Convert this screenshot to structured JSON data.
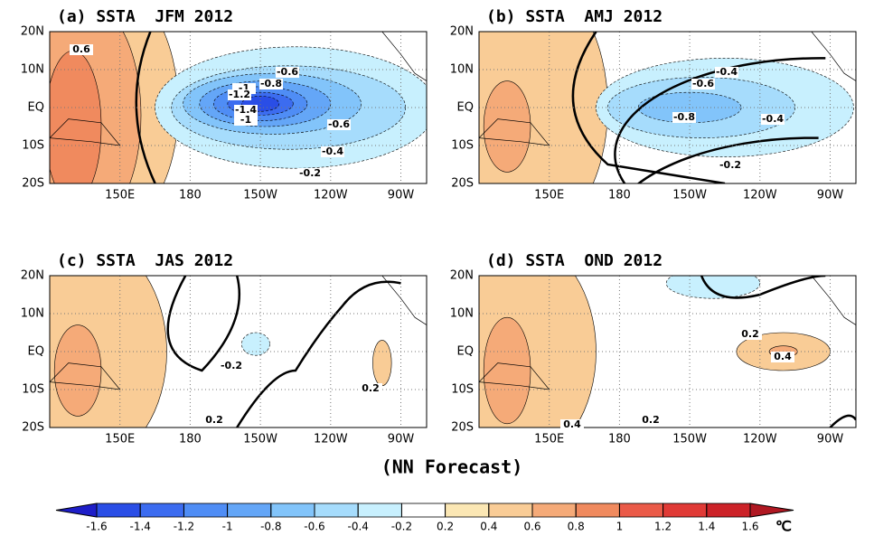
{
  "panels": [
    {
      "title": "(a) SSTA  JFM 2012",
      "contour_labels": [
        "0.6",
        "-0.6",
        "-0.8",
        "-1",
        "-1.2",
        "-1.4",
        "-1",
        "-0.6",
        "-0.4",
        "-0.2"
      ]
    },
    {
      "title": "(b) SSTA  AMJ 2012",
      "contour_labels": [
        "-0.4",
        "-0.6",
        "-0.8",
        "-0.4",
        "-0.2"
      ]
    },
    {
      "title": "(c) SSTA  JAS 2012",
      "contour_labels": [
        "-0.2",
        "0.2",
        "0.2"
      ]
    },
    {
      "title": "(d) SSTA  OND 2012",
      "contour_labels": [
        "0.2",
        "0.4",
        "0.2",
        "0.4"
      ]
    }
  ],
  "lat_labels": [
    "20N",
    "10N",
    "EQ",
    "10S",
    "20S"
  ],
  "lon_labels": [
    "150E",
    "180",
    "150W",
    "120W",
    "90W"
  ],
  "footer": "(NN Forecast)",
  "colorbar": {
    "ticks": [
      -1.6,
      -1.4,
      -1.2,
      -1,
      -0.8,
      -0.6,
      -0.4,
      -0.2,
      0.2,
      0.4,
      0.6,
      0.8,
      1,
      1.2,
      1.4,
      1.6
    ],
    "colors": [
      "#1e1ec8",
      "#2a4ee6",
      "#3c6cf0",
      "#4f8df5",
      "#64a6f7",
      "#82c4fa",
      "#a6dcfc",
      "#c8f0fe",
      "#ffffff",
      "#fbe7b4",
      "#f9cc96",
      "#f5aa78",
      "#f08a5e",
      "#ea5a48",
      "#e03a36",
      "#cc2228",
      "#b01822"
    ],
    "unit": "℃"
  }
}
